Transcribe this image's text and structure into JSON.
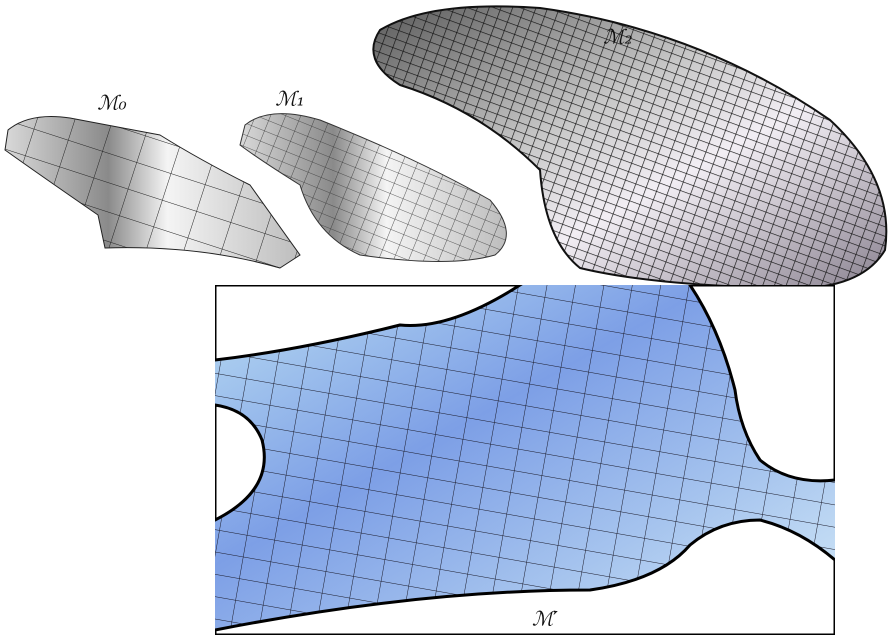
{
  "figure": {
    "labels": [
      "ℳ₀",
      "ℳ₁",
      "ℳ₂",
      "ℳ′"
    ]
  }
}
